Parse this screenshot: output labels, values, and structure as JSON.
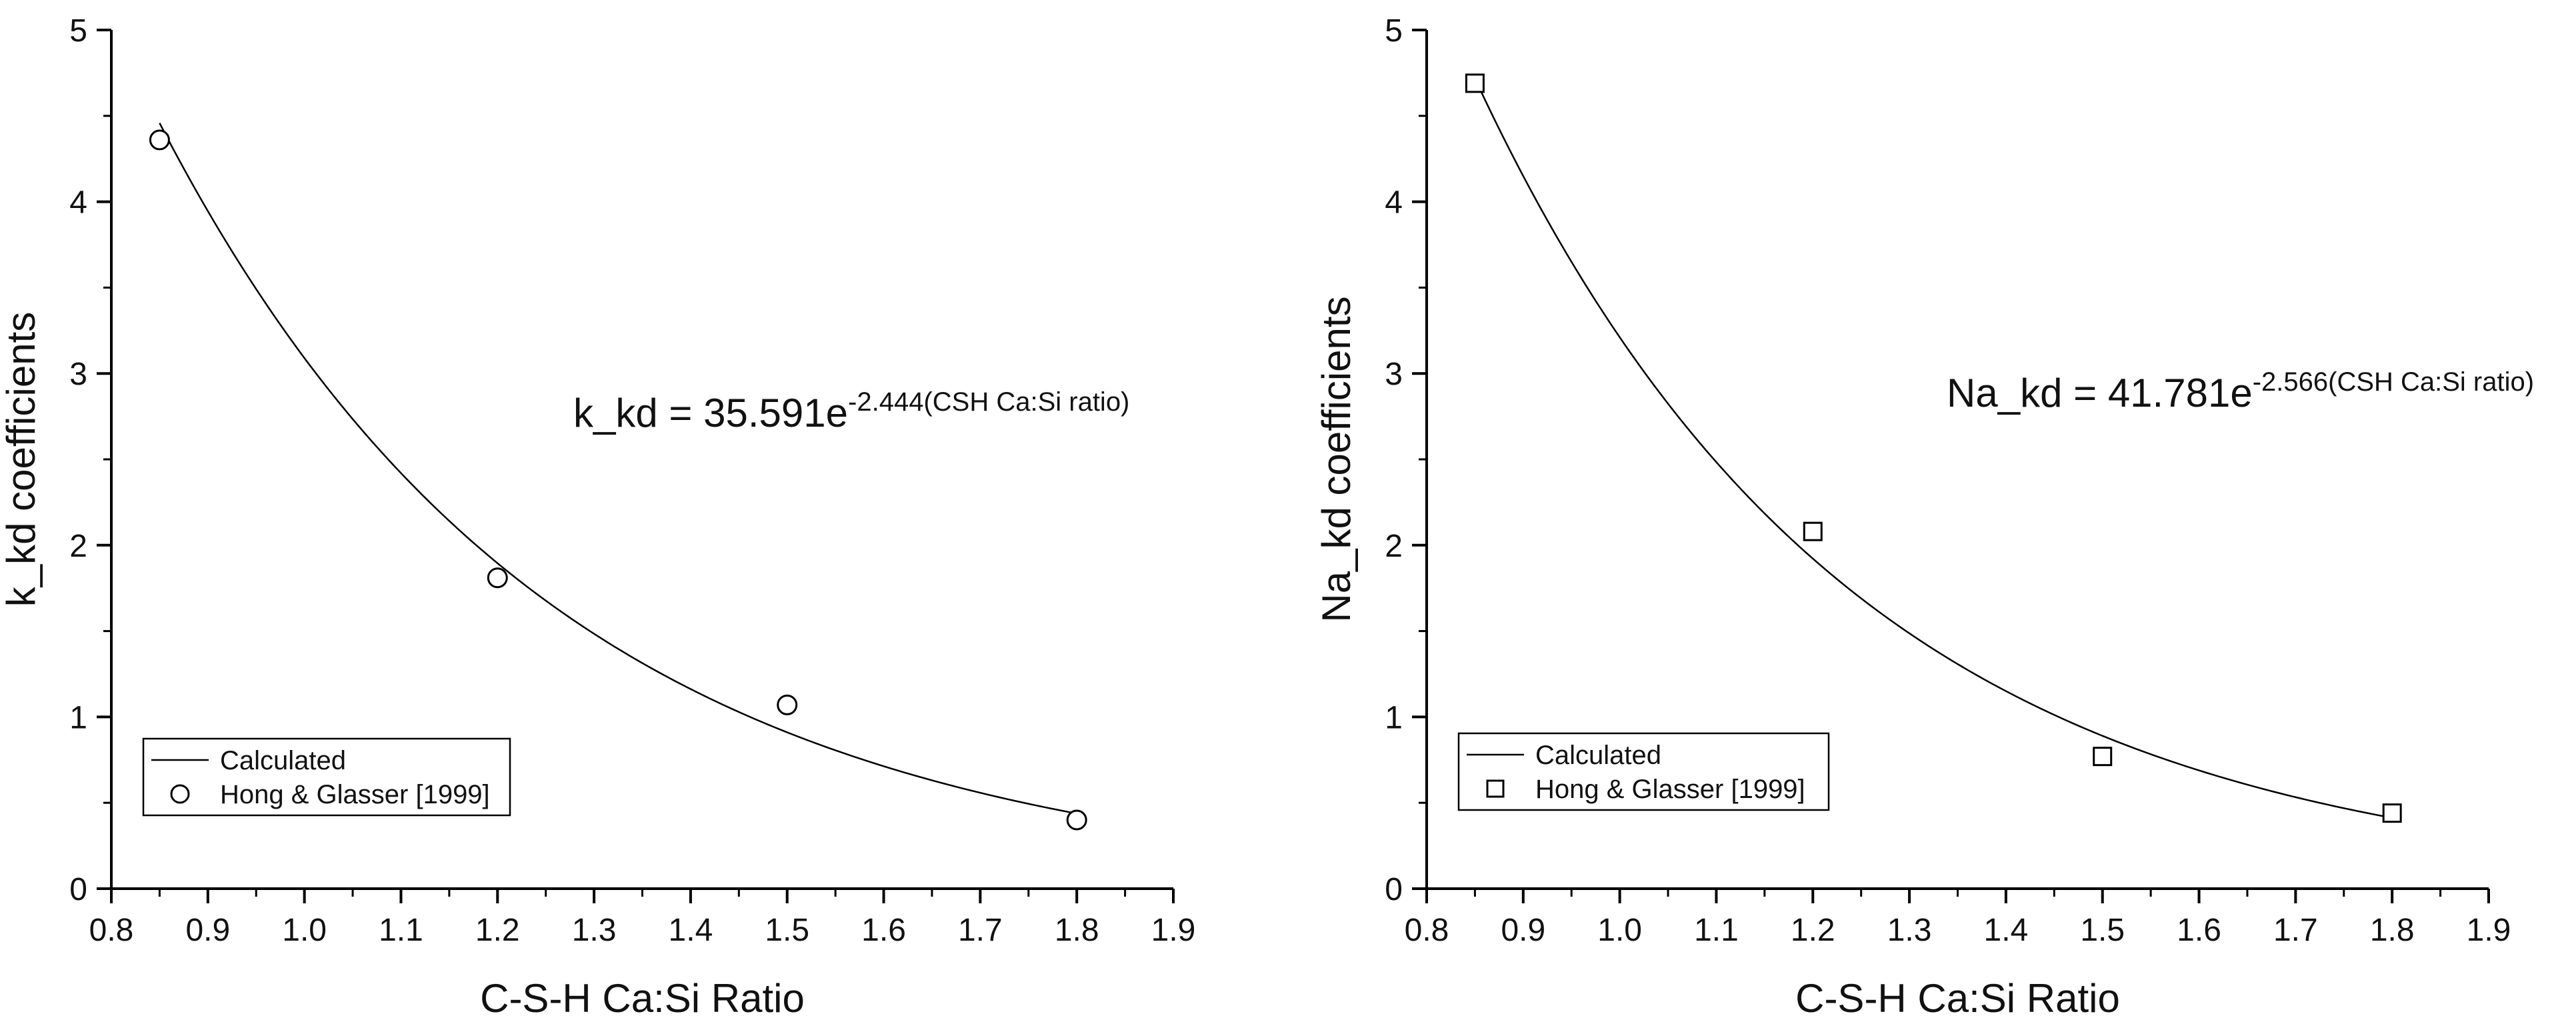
{
  "chart_data": [
    {
      "type": "scatter",
      "xlabel": "C-S-H Ca:Si Ratio",
      "ylabel": "k_kd coefficients",
      "xlim": [
        0.8,
        1.9
      ],
      "ylim": [
        0,
        5
      ],
      "xticks": [
        0.8,
        0.9,
        1.0,
        1.1,
        1.2,
        1.3,
        1.4,
        1.5,
        1.6,
        1.7,
        1.8,
        1.9
      ],
      "xtick_labels": [
        "0.8",
        "0.9",
        "1.0",
        "1.1",
        "1.2",
        "1.3",
        "1.4",
        "1.5",
        "1.6",
        "1.7",
        "1.8",
        "1.9"
      ],
      "yticks": [
        0,
        1,
        2,
        3,
        4,
        5
      ],
      "ytick_labels": [
        "0",
        "1",
        "2",
        "3",
        "4",
        "5"
      ],
      "series": [
        {
          "name": "Calculated",
          "kind": "line",
          "coef": 35.591,
          "exp": -2.444,
          "x_range": [
            0.85,
            1.8
          ]
        },
        {
          "name": "Hong & Glasser [1999]",
          "kind": "points",
          "marker": "circle",
          "x": [
            0.85,
            1.2,
            1.5,
            1.8
          ],
          "y": [
            4.36,
            1.81,
            1.07,
            0.4
          ]
        }
      ],
      "equation": {
        "main": "k_kd = 35.591e",
        "sup": "-2.444(CSH Ca:Si ratio)"
      },
      "legend_position": "bottom-left"
    },
    {
      "type": "scatter",
      "xlabel": "C-S-H Ca:Si Ratio",
      "ylabel": "Na_kd coefficients",
      "xlim": [
        0.8,
        1.9
      ],
      "ylim": [
        0,
        5
      ],
      "xticks": [
        0.8,
        0.9,
        1.0,
        1.1,
        1.2,
        1.3,
        1.4,
        1.5,
        1.6,
        1.7,
        1.8,
        1.9
      ],
      "xtick_labels": [
        "0.8",
        "0.9",
        "1.0",
        "1.1",
        "1.2",
        "1.3",
        "1.4",
        "1.5",
        "1.6",
        "1.7",
        "1.8",
        "1.9"
      ],
      "yticks": [
        0,
        1,
        2,
        3,
        4,
        5
      ],
      "ytick_labels": [
        "0",
        "1",
        "2",
        "3",
        "4",
        "5"
      ],
      "series": [
        {
          "name": "Calculated",
          "kind": "line",
          "coef": 41.781,
          "exp": -2.566,
          "x_range": [
            0.85,
            1.8
          ]
        },
        {
          "name": "Hong & Glasser [1999]",
          "kind": "points",
          "marker": "square",
          "x": [
            0.85,
            1.2,
            1.5,
            1.8
          ],
          "y": [
            4.69,
            2.08,
            0.77,
            0.44
          ]
        }
      ],
      "equation": {
        "main": "Na_kd = 41.781e",
        "sup": "-2.566(CSH Ca:Si ratio)"
      },
      "legend_position": "bottom-left"
    }
  ]
}
